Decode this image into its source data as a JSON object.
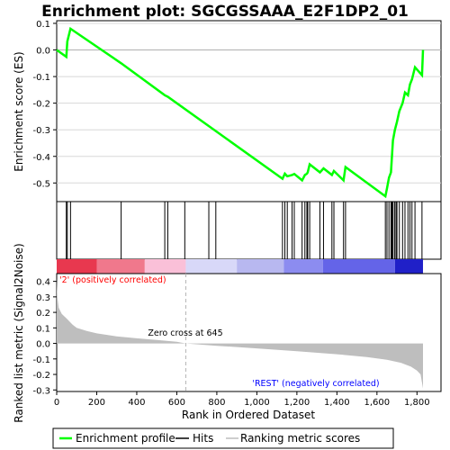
{
  "chart_data": {
    "type": "line",
    "title": "Enrichment plot: SGCGSSAAA_E2F1DP2_01",
    "es_panel": {
      "ylabel": "Enrichment score (ES)",
      "ylim": [
        -0.57,
        0.11
      ],
      "yticks": [
        0.1,
        0.0,
        -0.1,
        -0.2,
        -0.3,
        -0.4,
        -0.5
      ],
      "ytick_labels": [
        "0.1",
        "0.0",
        "-0.1",
        "-0.2",
        "-0.3",
        "-0.4",
        "-0.5"
      ],
      "line_color": "#00ff00",
      "series": [
        {
          "name": "Enrichment profile",
          "x": [
            0,
            48,
            53,
            69,
            322,
            540,
            555,
            1128,
            1140,
            1152,
            1176,
            1187,
            1226,
            1240,
            1250,
            1254,
            1264,
            1315,
            1333,
            1375,
            1385,
            1433,
            1443,
            1642,
            1650,
            1660,
            1670,
            1680,
            1690,
            1700,
            1712,
            1728,
            1740,
            1755,
            1765,
            1775,
            1790,
            1825,
            1830
          ],
          "y": [
            0.0,
            -0.026,
            0.032,
            0.08,
            -0.05,
            -0.17,
            -0.176,
            -0.484,
            -0.465,
            -0.475,
            -0.47,
            -0.466,
            -0.49,
            -0.47,
            -0.465,
            -0.46,
            -0.43,
            -0.46,
            -0.445,
            -0.47,
            -0.455,
            -0.49,
            -0.44,
            -0.55,
            -0.52,
            -0.48,
            -0.46,
            -0.34,
            -0.3,
            -0.27,
            -0.23,
            -0.2,
            -0.16,
            -0.17,
            -0.13,
            -0.11,
            -0.065,
            -0.095,
            0.0
          ]
        }
      ]
    },
    "hits": [
      48,
      53,
      69,
      322,
      540,
      555,
      640,
      760,
      795,
      1128,
      1140,
      1152,
      1176,
      1187,
      1226,
      1240,
      1250,
      1254,
      1264,
      1315,
      1333,
      1375,
      1385,
      1433,
      1443,
      1642,
      1650,
      1660,
      1670,
      1675,
      1680,
      1688,
      1695,
      1700,
      1712,
      1728,
      1740,
      1755,
      1765,
      1775,
      1790,
      1825
    ],
    "rank_metric_panel": {
      "ylabel": "Ranked list metric (Signal2Noise)",
      "xlabel": "Rank in Ordered Dataset",
      "ylim": [
        -0.31,
        0.45
      ],
      "yticks": [
        0.4,
        0.3,
        0.2,
        0.1,
        0.0,
        -0.1,
        -0.2,
        -0.3
      ],
      "ytick_labels": [
        "0.4",
        "0.3",
        "0.2",
        "0.1",
        "0.0",
        "-0.1",
        "-0.2",
        "-0.3"
      ],
      "xlim": [
        0,
        1920
      ],
      "xticks": [
        0,
        200,
        400,
        600,
        800,
        1000,
        1200,
        1400,
        1600,
        1800
      ],
      "xtick_labels": [
        "0",
        "200",
        "400",
        "600",
        "800",
        "1,000",
        "1,200",
        "1,400",
        "1,600",
        "1,800"
      ],
      "fill_color": "#bebebe",
      "x": [
        0,
        3,
        10,
        25,
        50,
        80,
        100,
        150,
        200,
        300,
        400,
        500,
        600,
        645,
        800,
        1000,
        1200,
        1400,
        1550,
        1650,
        1720,
        1770,
        1800,
        1818,
        1826,
        1830
      ],
      "y": [
        0.42,
        0.3,
        0.23,
        0.19,
        0.16,
        0.12,
        0.1,
        0.08,
        0.065,
        0.045,
        0.033,
        0.022,
        0.01,
        0.0,
        -0.015,
        -0.032,
        -0.05,
        -0.07,
        -0.088,
        -0.105,
        -0.125,
        -0.15,
        -0.175,
        -0.2,
        -0.26,
        -0.29
      ],
      "zero_cross_label": "Zero cross at 645",
      "zero_cross_rank": 645,
      "positive_label": "'2' (positively correlated)",
      "positive_color": "#ff0000",
      "negative_label": "'REST' (negatively correlated)",
      "negative_color": "#0000ff"
    },
    "heat_bar": {
      "segments": [
        {
          "x0": 0,
          "x1": 200,
          "color": "#e8384f"
        },
        {
          "x0": 200,
          "x1": 440,
          "color": "#f0788c"
        },
        {
          "x0": 440,
          "x1": 645,
          "color": "#fac0d8"
        },
        {
          "x0": 645,
          "x1": 900,
          "color": "#d8d8f8"
        },
        {
          "x0": 900,
          "x1": 1135,
          "color": "#b8b8f0"
        },
        {
          "x0": 1135,
          "x1": 1330,
          "color": "#8c8cf0"
        },
        {
          "x0": 1330,
          "x1": 1690,
          "color": "#6464e8"
        },
        {
          "x0": 1690,
          "x1": 1830,
          "color": "#2020c8"
        }
      ]
    },
    "legend": [
      {
        "label": "Enrichment profile",
        "color": "#00ff00",
        "style": "line-green"
      },
      {
        "label": "Hits",
        "color": "#000000",
        "style": "line-black"
      },
      {
        "label": "Ranking metric scores",
        "color": "#bebebe",
        "style": "line-gray"
      }
    ]
  }
}
